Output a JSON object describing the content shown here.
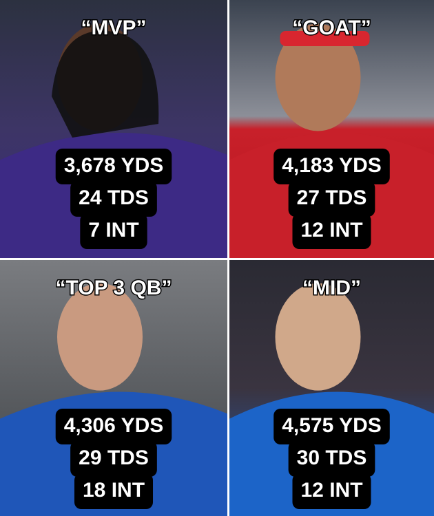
{
  "panels": [
    {
      "label": "“MVP”",
      "stats": [
        "3,678 YDS",
        "24 TDS",
        "7 INT"
      ]
    },
    {
      "label": "“GOAT”",
      "stats": [
        "4,183 YDS",
        "27 TDS",
        "12 INT"
      ]
    },
    {
      "label": "“TOP 3 QB”",
      "stats": [
        "4,306 YDS",
        "29 TDS",
        "18 INT"
      ]
    },
    {
      "label": "“MID”",
      "stats": [
        "4,575 YDS",
        "30 TDS",
        "12 INT"
      ]
    }
  ]
}
